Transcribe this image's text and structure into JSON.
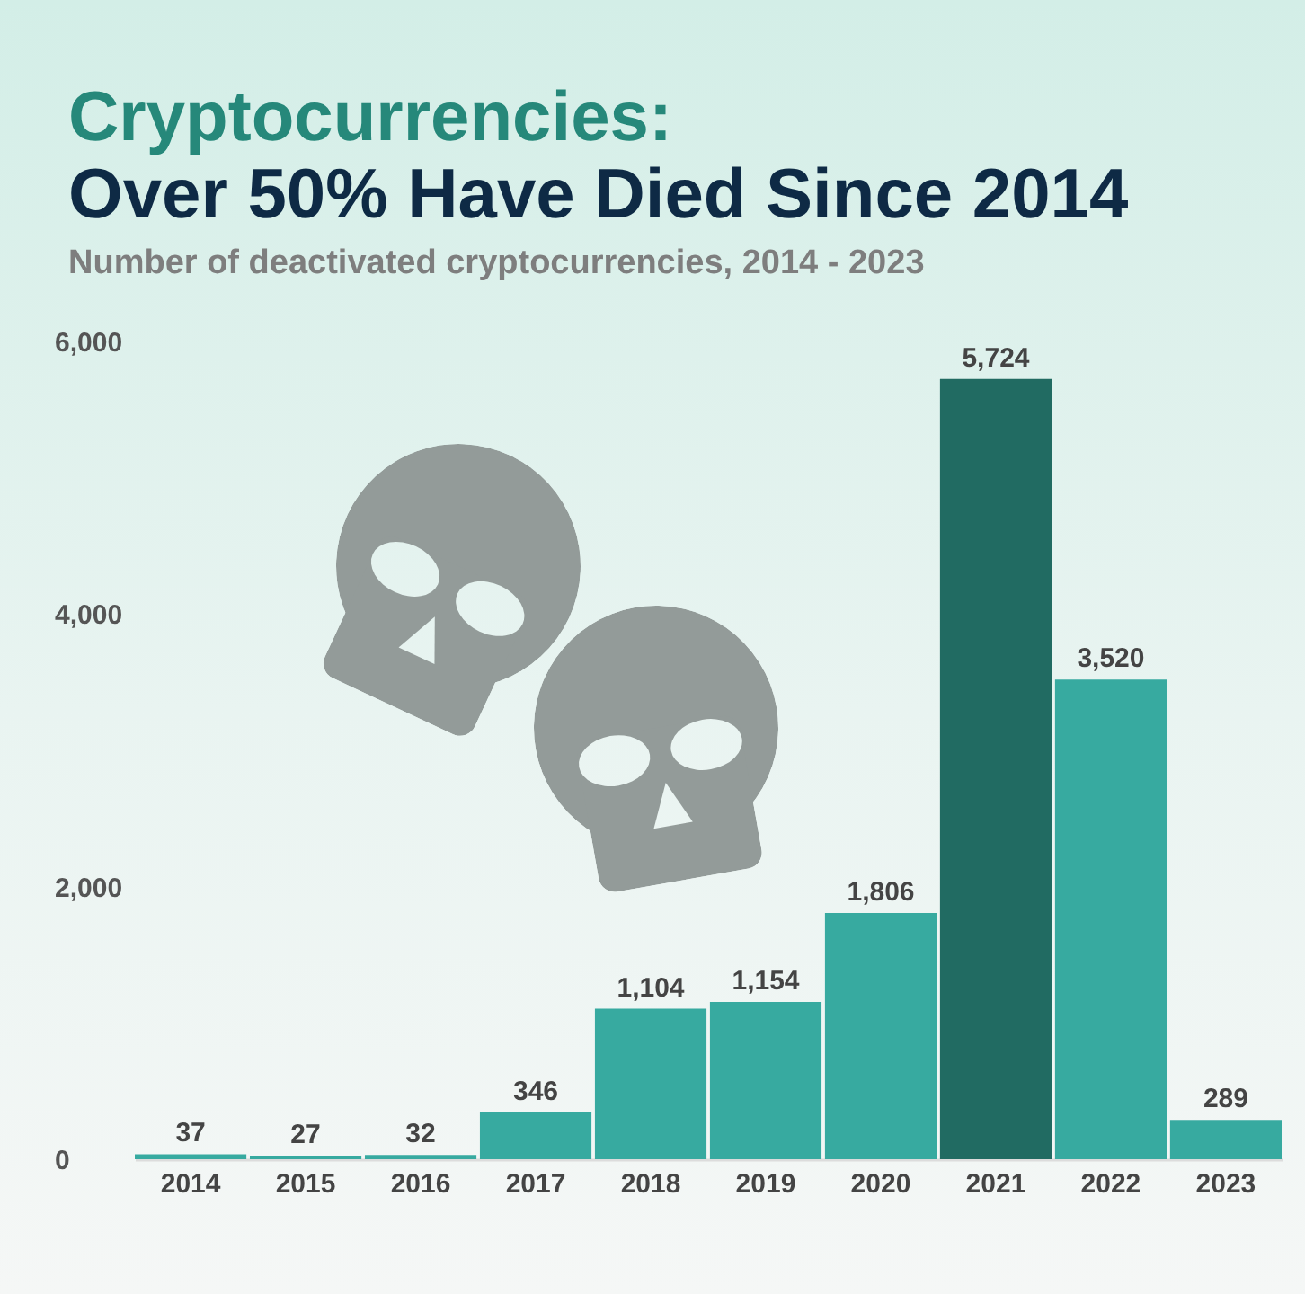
{
  "chart_data": {
    "type": "bar",
    "title": "Cryptocurrencies:\nOver 50% Have Died Since 2014",
    "subtitle": "Number of deactivated cryptocurrencies, 2014 - 2023",
    "categories": [
      "2014",
      "2015",
      "2016",
      "2017",
      "2018",
      "2019",
      "2020",
      "2021",
      "2022",
      "2023"
    ],
    "values": [
      37,
      27,
      32,
      346,
      1104,
      1154,
      1806,
      5724,
      3520,
      289
    ],
    "value_labels": [
      "37",
      "27",
      "32",
      "346",
      "1,104",
      "1,154",
      "1,806",
      "5,724",
      "3,520",
      "289"
    ],
    "colors": [
      "#37aaa0",
      "#37aaa0",
      "#37aaa0",
      "#37aaa0",
      "#37aaa0",
      "#37aaa0",
      "#37aaa0",
      "#216b62",
      "#37aaa0",
      "#37aaa0"
    ],
    "ylim": [
      0,
      6000
    ],
    "yticks": [
      0,
      {
        "value": 2000,
        "label": "2,000"
      },
      {
        "value": 4000,
        "label": "4,000"
      },
      {
        "value": 6000,
        "label": "6,000"
      }
    ]
  }
}
